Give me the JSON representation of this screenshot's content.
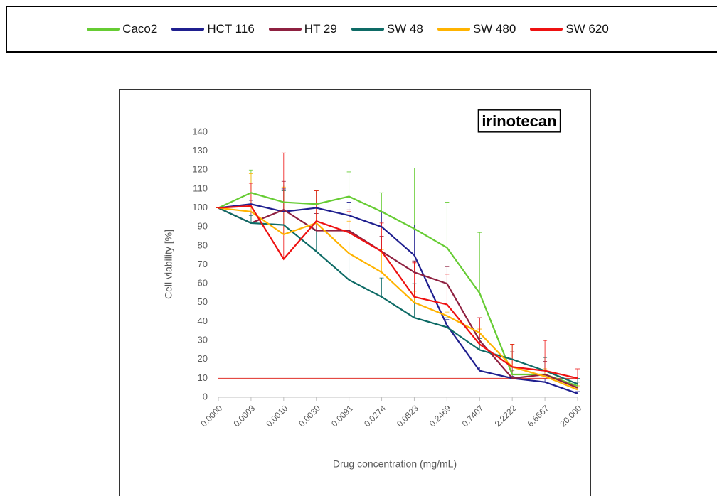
{
  "chart_data": {
    "type": "line",
    "title": "irinotecan",
    "x_label": "Drug concentration (mg/mL)",
    "y_label": "Cell viability [%]",
    "categories": [
      "0.0000",
      "0.0003",
      "0.0010",
      "0.0030",
      "0.0091",
      "0.0274",
      "0.0823",
      "0.2469",
      "0.7407",
      "2.2222",
      "6.6667",
      "20.000"
    ],
    "ylim": [
      0,
      140
    ],
    "yticks": [
      0,
      10,
      20,
      30,
      40,
      50,
      60,
      70,
      80,
      90,
      100,
      110,
      120,
      130,
      140
    ],
    "threshold": 10,
    "threshold_color": "#e0302a",
    "series": [
      {
        "name": "Caco2",
        "color": "#66cc33",
        "values": [
          100,
          108,
          103,
          102,
          106,
          98,
          89,
          79,
          55,
          12,
          12,
          6
        ],
        "errors": [
          0,
          12,
          9,
          7,
          13,
          10,
          32,
          24,
          32,
          2,
          2,
          2
        ]
      },
      {
        "name": "HCT 116",
        "color": "#1f1f8f",
        "values": [
          100,
          102,
          98,
          100,
          96,
          90,
          75,
          38,
          14,
          10,
          8,
          2
        ],
        "errors": [
          0,
          2,
          12,
          9,
          7,
          8,
          16,
          3,
          2,
          1,
          2,
          1
        ]
      },
      {
        "name": "HT 29",
        "color": "#8e2040",
        "values": [
          100,
          92,
          99,
          88,
          88,
          77,
          66,
          60,
          30,
          10,
          12,
          5
        ],
        "errors": [
          0,
          10,
          15,
          9,
          11,
          8,
          6,
          9,
          12,
          14,
          7,
          3
        ]
      },
      {
        "name": "SW 48",
        "color": "#0e6b66",
        "values": [
          100,
          92,
          91,
          77,
          62,
          53,
          42,
          37,
          25,
          20,
          14,
          7
        ],
        "errors": [
          0,
          4,
          18,
          11,
          20,
          10,
          18,
          5,
          6,
          8,
          7,
          3
        ]
      },
      {
        "name": "SW 480",
        "color": "#ffb300",
        "values": [
          100,
          98,
          86,
          92,
          76,
          66,
          50,
          43,
          34,
          16,
          11,
          4
        ],
        "errors": [
          0,
          20,
          25,
          17,
          17,
          12,
          6,
          2,
          2,
          12,
          4,
          2
        ]
      },
      {
        "name": "SW 620",
        "color": "#ee1111",
        "values": [
          100,
          101,
          73,
          93,
          87,
          77,
          53,
          49,
          28,
          16,
          14,
          10
        ],
        "errors": [
          0,
          12,
          56,
          16,
          11,
          15,
          18,
          16,
          14,
          12,
          16,
          5
        ]
      }
    ]
  }
}
